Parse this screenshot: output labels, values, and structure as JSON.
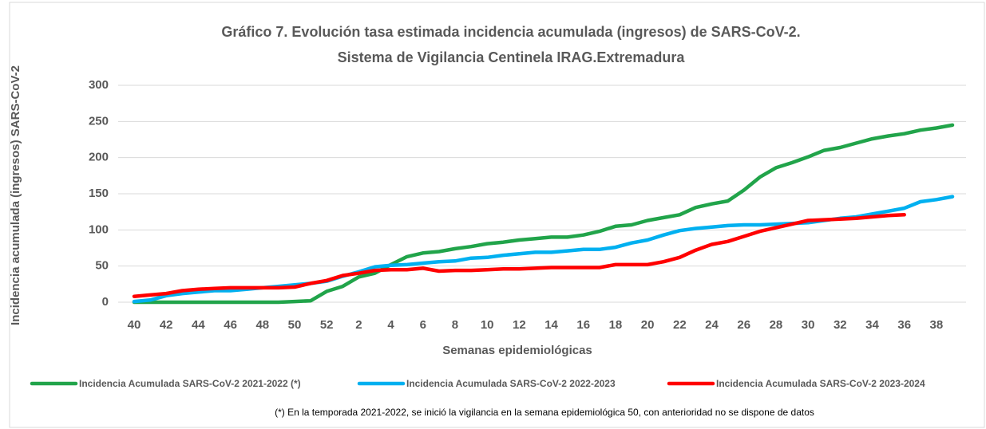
{
  "chart_data": {
    "type": "line",
    "title": "Gráfico 7. Evolución tasa estimada incidencia acumulada (ingresos) de SARS-CoV-2.",
    "subtitle": "Sistema de Vigilancia Centinela IRAG.Extremadura",
    "x_label": "Semanas epidemiológicas",
    "y_label": "Incidencia acumulada (ingresos) SARS-CoV-2",
    "footnote": "(*) En la temporada 2021-2022, se inició la vigilancia en la semana epidemiológica 50, con anterioridad no se dispone de datos",
    "categories": [
      "40",
      null,
      "42",
      null,
      "44",
      null,
      "46",
      null,
      "48",
      null,
      "50",
      null,
      "52",
      null,
      "2",
      null,
      "4",
      null,
      "6",
      null,
      "8",
      null,
      "10",
      null,
      "12",
      null,
      "14",
      null,
      "16",
      null,
      "18",
      null,
      "20",
      null,
      "22",
      null,
      "24",
      null,
      "26",
      null,
      "28",
      null,
      "30",
      null,
      "32",
      null,
      "34",
      null,
      "36",
      null,
      "38",
      null
    ],
    "series": [
      {
        "name": "Incidencia Acumulada SARS-CoV-2 2021-2022 (*)",
        "color": "#21a44a",
        "values": [
          0,
          0,
          0,
          0,
          0,
          0,
          0,
          0,
          0,
          0,
          1,
          2,
          15,
          22,
          35,
          40,
          52,
          63,
          68,
          70,
          74,
          77,
          81,
          83,
          86,
          88,
          90,
          90,
          93,
          98,
          105,
          107,
          113,
          117,
          121,
          131,
          136,
          140,
          155,
          173,
          186,
          193,
          201,
          210,
          214,
          220,
          226,
          230,
          233,
          238,
          241,
          245
        ]
      },
      {
        "name": "Incidencia Acumulada SARS-CoV-2 2022-2023",
        "color": "#00b0f0",
        "values": [
          1,
          3,
          9,
          12,
          14,
          16,
          16,
          18,
          20,
          22,
          24,
          26,
          29,
          36,
          42,
          49,
          51,
          52,
          54,
          56,
          57,
          61,
          62,
          65,
          67,
          69,
          69,
          71,
          73,
          73,
          76,
          82,
          86,
          93,
          99,
          102,
          104,
          106,
          107,
          107,
          108,
          109,
          110,
          113,
          116,
          118,
          122,
          126,
          130,
          139,
          142,
          146
        ]
      },
      {
        "name": "Incidencia Acumulada SARS-CoV-2 2023-2024",
        "color": "#ff0000",
        "values": [
          8,
          10,
          12,
          16,
          18,
          19,
          20,
          20,
          20,
          20,
          21,
          26,
          30,
          37,
          40,
          44,
          45,
          45,
          47,
          43,
          44,
          44,
          45,
          46,
          46,
          47,
          48,
          48,
          48,
          48,
          52,
          52,
          52,
          56,
          62,
          72,
          80,
          84,
          91,
          98,
          103,
          108,
          113,
          114,
          115,
          116,
          118,
          120,
          121,
          null,
          null,
          null
        ]
      }
    ],
    "ylim": [
      0,
      300
    ],
    "yticks": [
      0,
      50,
      100,
      150,
      200,
      250,
      300
    ],
    "grid": true
  }
}
